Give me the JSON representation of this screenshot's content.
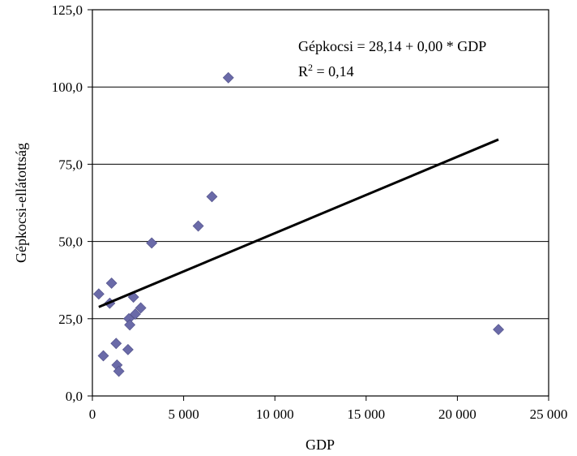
{
  "chart_data": {
    "type": "scatter",
    "title": "",
    "xlabel": "GDP",
    "ylabel": "Gépkocsi-ellátottság",
    "xlim": [
      0,
      25000
    ],
    "ylim": [
      0,
      125
    ],
    "x_ticks": [
      0,
      5000,
      10000,
      15000,
      20000,
      25000
    ],
    "x_tick_labels": [
      "0",
      "5 000",
      "10 000",
      "15 000",
      "20 000",
      "25 000"
    ],
    "y_ticks": [
      0,
      25,
      50,
      75,
      100,
      125
    ],
    "y_tick_labels": [
      "0,0",
      "25,0",
      "50,0",
      "75,0",
      "100,0",
      "125,0"
    ],
    "grid": "horizontal",
    "points": [
      {
        "x": 350,
        "y": 33
      },
      {
        "x": 600,
        "y": 13
      },
      {
        "x": 950,
        "y": 30
      },
      {
        "x": 1050,
        "y": 36.5
      },
      {
        "x": 1300,
        "y": 17
      },
      {
        "x": 1350,
        "y": 10
      },
      {
        "x": 1450,
        "y": 8
      },
      {
        "x": 1950,
        "y": 15
      },
      {
        "x": 2000,
        "y": 25
      },
      {
        "x": 2050,
        "y": 23
      },
      {
        "x": 2250,
        "y": 32
      },
      {
        "x": 2350,
        "y": 26.5
      },
      {
        "x": 2650,
        "y": 28.5
      },
      {
        "x": 3250,
        "y": 49.5
      },
      {
        "x": 5800,
        "y": 55
      },
      {
        "x": 6550,
        "y": 64.5
      },
      {
        "x": 7450,
        "y": 103
      },
      {
        "x": 22250,
        "y": 21.5
      }
    ],
    "trendline": {
      "x": [
        350,
        22250
      ],
      "y": [
        28.8,
        83
      ]
    },
    "marker_color": "#6a6aa8",
    "trendline_color": "#000000",
    "annotations": {
      "equation": "Gépkocsi = 28,14 + 0,00 * GDP",
      "r2_prefix": "R",
      "r2_sup": "2",
      "r2_suffix": " = 0,14"
    }
  }
}
